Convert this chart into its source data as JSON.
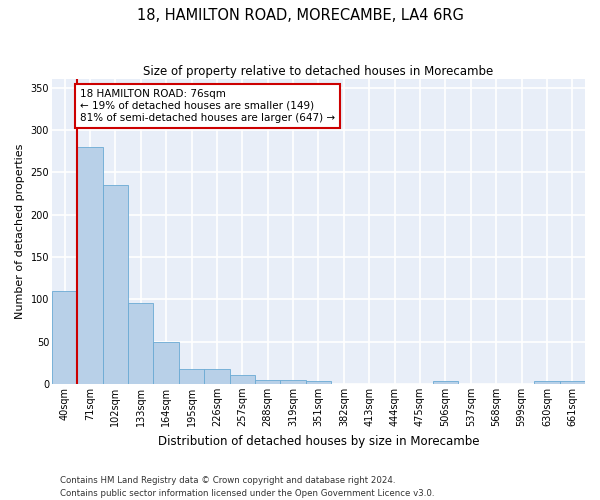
{
  "title": "18, HAMILTON ROAD, MORECAMBE, LA4 6RG",
  "subtitle": "Size of property relative to detached houses in Morecambe",
  "xlabel": "Distribution of detached houses by size in Morecambe",
  "ylabel": "Number of detached properties",
  "bin_labels": [
    "40sqm",
    "71sqm",
    "102sqm",
    "133sqm",
    "164sqm",
    "195sqm",
    "226sqm",
    "257sqm",
    "288sqm",
    "319sqm",
    "351sqm",
    "382sqm",
    "413sqm",
    "444sqm",
    "475sqm",
    "506sqm",
    "537sqm",
    "568sqm",
    "599sqm",
    "630sqm",
    "661sqm"
  ],
  "bar_values": [
    110,
    280,
    235,
    95,
    49,
    18,
    18,
    10,
    5,
    5,
    3,
    0,
    0,
    0,
    0,
    3,
    0,
    0,
    0,
    3,
    3
  ],
  "bar_color": "#b8d0e8",
  "bar_edge_color": "#6aaad4",
  "annotation_text": "18 HAMILTON ROAD: 76sqm\n← 19% of detached houses are smaller (149)\n81% of semi-detached houses are larger (647) →",
  "annotation_box_color": "white",
  "annotation_box_edge_color": "#cc0000",
  "line_color": "#cc0000",
  "ylim": [
    0,
    360
  ],
  "yticks": [
    0,
    50,
    100,
    150,
    200,
    250,
    300,
    350
  ],
  "footer_text": "Contains HM Land Registry data © Crown copyright and database right 2024.\nContains public sector information licensed under the Open Government Licence v3.0.",
  "background_color": "#e8eef8",
  "grid_color": "white",
  "title_fontsize": 10.5,
  "subtitle_fontsize": 8.5,
  "ylabel_fontsize": 8,
  "xlabel_fontsize": 8.5,
  "tick_fontsize": 7,
  "annotation_fontsize": 7.5,
  "footer_fontsize": 6.2
}
